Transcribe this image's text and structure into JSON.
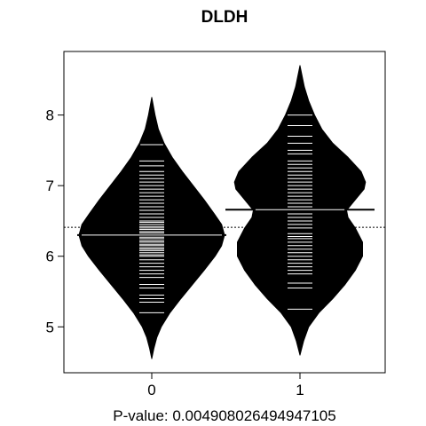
{
  "chart_data": {
    "type": "beanplot",
    "title": "DLDH",
    "xlabel": "P-value: 0.004908026494947105",
    "ylabel": "",
    "ylim": [
      4.35,
      8.9
    ],
    "y_ticks": [
      "5",
      "6",
      "7",
      "8"
    ],
    "categories": [
      "0",
      "1"
    ],
    "overall_mean": 6.41,
    "beans": [
      {
        "category": "0",
        "mean": 6.3,
        "min": 4.55,
        "max": 8.25,
        "density_profile": [
          [
            4.55,
            0.0
          ],
          [
            4.7,
            0.03
          ],
          [
            4.85,
            0.07
          ],
          [
            5.0,
            0.13
          ],
          [
            5.2,
            0.25
          ],
          [
            5.4,
            0.4
          ],
          [
            5.6,
            0.56
          ],
          [
            5.8,
            0.72
          ],
          [
            6.0,
            0.87
          ],
          [
            6.15,
            0.96
          ],
          [
            6.3,
            1.0
          ],
          [
            6.45,
            0.96
          ],
          [
            6.6,
            0.86
          ],
          [
            6.8,
            0.72
          ],
          [
            7.0,
            0.57
          ],
          [
            7.2,
            0.42
          ],
          [
            7.4,
            0.28
          ],
          [
            7.6,
            0.17
          ],
          [
            7.8,
            0.09
          ],
          [
            8.0,
            0.045
          ],
          [
            8.25,
            0.0
          ]
        ],
        "observations": [
          5.2,
          5.35,
          5.4,
          5.45,
          5.55,
          5.6,
          5.7,
          5.75,
          5.8,
          5.85,
          5.9,
          5.95,
          6.0,
          6.02,
          6.05,
          6.08,
          6.1,
          6.12,
          6.15,
          6.17,
          6.2,
          6.22,
          6.25,
          6.27,
          6.3,
          6.33,
          6.35,
          6.38,
          6.4,
          6.42,
          6.45,
          6.48,
          6.5,
          6.55,
          6.6,
          6.65,
          6.7,
          6.75,
          6.8,
          6.85,
          6.9,
          6.95,
          7.0,
          7.05,
          7.1,
          7.15,
          7.2,
          7.28,
          7.35,
          7.58
        ]
      },
      {
        "category": "1",
        "mean": 6.66,
        "min": 4.6,
        "max": 8.7,
        "density_profile": [
          [
            4.6,
            0.0
          ],
          [
            4.8,
            0.05
          ],
          [
            5.0,
            0.12
          ],
          [
            5.2,
            0.26
          ],
          [
            5.4,
            0.45
          ],
          [
            5.6,
            0.62
          ],
          [
            5.8,
            0.76
          ],
          [
            6.0,
            0.86
          ],
          [
            6.2,
            0.86
          ],
          [
            6.4,
            0.76
          ],
          [
            6.55,
            0.66
          ],
          [
            6.65,
            0.64
          ],
          [
            6.8,
            0.76
          ],
          [
            6.95,
            0.88
          ],
          [
            7.05,
            0.9
          ],
          [
            7.2,
            0.84
          ],
          [
            7.4,
            0.66
          ],
          [
            7.6,
            0.45
          ],
          [
            7.8,
            0.3
          ],
          [
            8.0,
            0.2
          ],
          [
            8.2,
            0.12
          ],
          [
            8.4,
            0.06
          ],
          [
            8.7,
            0.0
          ]
        ],
        "observations": [
          5.25,
          5.55,
          5.62,
          5.75,
          5.8,
          5.85,
          5.9,
          5.95,
          6.0,
          6.05,
          6.1,
          6.15,
          6.2,
          6.25,
          6.28,
          6.32,
          6.4,
          6.45,
          6.5,
          6.55,
          6.6,
          6.7,
          6.75,
          6.8,
          6.85,
          6.9,
          6.95,
          7.0,
          7.05,
          7.1,
          7.15,
          7.2,
          7.25,
          7.3,
          7.35,
          7.45,
          7.5,
          7.6,
          7.7,
          7.85,
          8.0
        ]
      }
    ]
  }
}
